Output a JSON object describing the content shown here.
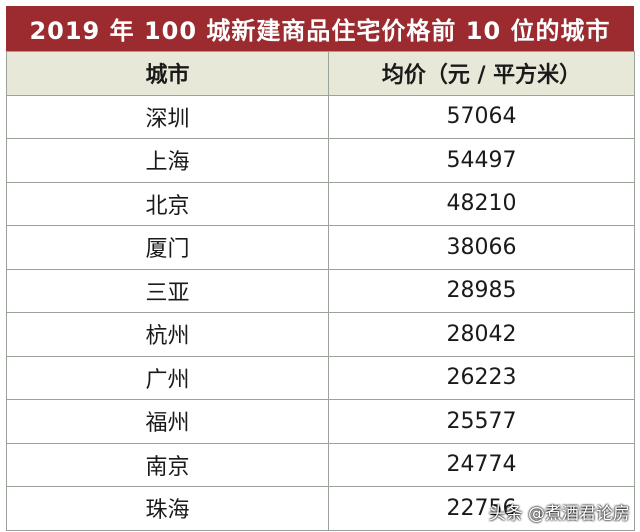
{
  "chart_data": {
    "type": "table",
    "title": "2019 年 100 城新建商品住宅价格前 10 位的城市",
    "columns": [
      "城市",
      "均价（元 / 平方米）"
    ],
    "rows": [
      {
        "city": "深圳",
        "price": "57064"
      },
      {
        "city": "上海",
        "price": "54497"
      },
      {
        "city": "北京",
        "price": "48210"
      },
      {
        "city": "厦门",
        "price": "38066"
      },
      {
        "city": "三亚",
        "price": "28985"
      },
      {
        "city": "杭州",
        "price": "28042"
      },
      {
        "city": "广州",
        "price": "26223"
      },
      {
        "city": "福州",
        "price": "25577"
      },
      {
        "city": "南京",
        "price": "24774"
      },
      {
        "city": "珠海",
        "price": "22756"
      }
    ]
  },
  "colors": {
    "header_bar": "#9b2b2f",
    "column_header": "#e8e8d8",
    "grid": "#9aa39a"
  },
  "watermark": "头条 @煮酒君论房"
}
